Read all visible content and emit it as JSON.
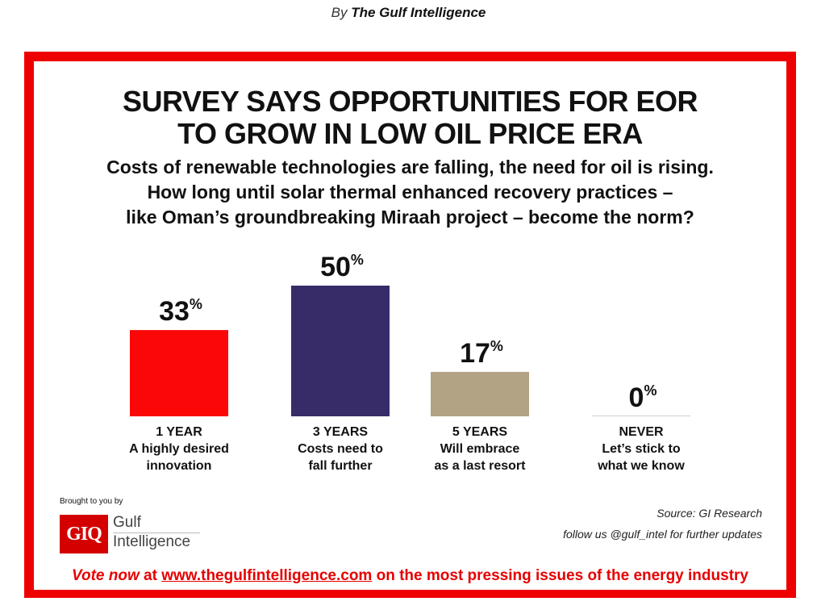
{
  "byline": {
    "prefix": "By",
    "author": "The Gulf Intelligence"
  },
  "title_lines": [
    "SURVEY SAYS OPPORTUNITIES FOR EOR",
    "TO GROW IN LOW OIL PRICE ERA"
  ],
  "subtitle_lines": [
    "Costs of renewable technologies are falling, the need for oil is rising.",
    "How long until solar thermal enhanced recovery practices –",
    "like Oman’s groundbreaking Miraah project – become the norm?"
  ],
  "colors": {
    "frame": "#ee0000",
    "bar_1": "#fb0707",
    "bar_2": "#372c68",
    "bar_3": "#b1a383",
    "bar_4": "#cfcfcf"
  },
  "chart_data": {
    "type": "bar",
    "title": "SURVEY SAYS OPPORTUNITIES FOR EOR TO GROW IN LOW OIL PRICE ERA",
    "categories": [
      "1 YEAR",
      "3 YEARS",
      "5 YEARS",
      "NEVER"
    ],
    "values": [
      33,
      50,
      17,
      0
    ],
    "value_labels": [
      "33",
      "50",
      "17",
      "0"
    ],
    "value_suffix": "%",
    "category_descriptions": [
      [
        "A highly desired",
        "innovation"
      ],
      [
        "Costs need to",
        "fall further"
      ],
      [
        "Will embrace",
        "as a last resort"
      ],
      [
        "Let’s stick to",
        "what we know"
      ]
    ],
    "xlabel": "",
    "ylabel": "",
    "ylim": [
      0,
      50
    ],
    "grid": false,
    "legend": "none"
  },
  "branding": {
    "brought_by": "Brought to you by",
    "logo_text": "GIQ",
    "name_line1": "Gulf",
    "name_line2": "Intelligence"
  },
  "source": "Source: GI Research",
  "follow": "follow us @gulf_intel for further updates",
  "footer": {
    "vote": "Vote now",
    "at": " at ",
    "link": "www.thegulfintelligence.com",
    "rest": " on the most pressing issues of the energy industry"
  }
}
